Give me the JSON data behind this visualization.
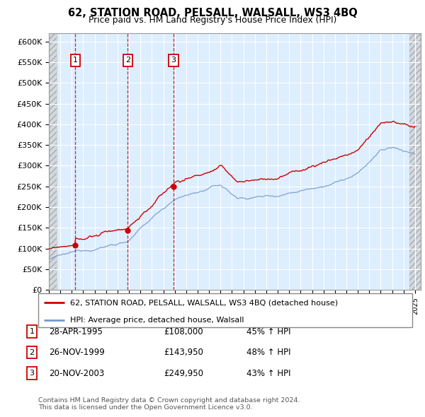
{
  "title": "62, STATION ROAD, PELSALL, WALSALL, WS3 4BQ",
  "subtitle": "Price paid vs. HM Land Registry's House Price Index (HPI)",
  "ylim": [
    0,
    620000
  ],
  "yticks": [
    0,
    50000,
    100000,
    150000,
    200000,
    250000,
    300000,
    350000,
    400000,
    450000,
    500000,
    550000,
    600000
  ],
  "ytick_labels": [
    "£0",
    "£50K",
    "£100K",
    "£150K",
    "£200K",
    "£250K",
    "£300K",
    "£350K",
    "£400K",
    "£450K",
    "£500K",
    "£550K",
    "£600K"
  ],
  "transactions": [
    {
      "date_year": 1995.32,
      "price": 108000,
      "label": "1"
    },
    {
      "date_year": 1999.9,
      "price": 143950,
      "label": "2"
    },
    {
      "date_year": 2003.89,
      "price": 249950,
      "label": "3"
    }
  ],
  "transaction_color": "#cc0000",
  "hpi_color": "#7799cc",
  "vline_color": "#cc0000",
  "chart_bg": "#ddeeff",
  "grid_color": "#ffffff",
  "legend_entries": [
    "62, STATION ROAD, PELSALL, WALSALL, WS3 4BQ (detached house)",
    "HPI: Average price, detached house, Walsall"
  ],
  "table_rows": [
    {
      "num": "1",
      "date": "28-APR-1995",
      "price": "£108,000",
      "note": "45% ↑ HPI"
    },
    {
      "num": "2",
      "date": "26-NOV-1999",
      "price": "£143,950",
      "note": "48% ↑ HPI"
    },
    {
      "num": "3",
      "date": "20-NOV-2003",
      "price": "£249,950",
      "note": "43% ↑ HPI"
    }
  ],
  "footnote": "Contains HM Land Registry data © Crown copyright and database right 2024.\nThis data is licensed under the Open Government Licence v3.0.",
  "xlim_start": 1993.0,
  "xlim_end": 2025.5
}
